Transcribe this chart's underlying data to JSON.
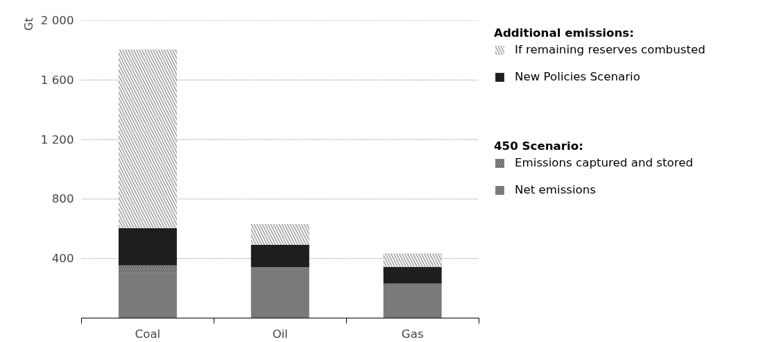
{
  "chart_data": {
    "type": "bar",
    "stacked": true,
    "categories": [
      "Coal",
      "Oil",
      "Gas"
    ],
    "ylabel": "Gt",
    "ylim": [
      0,
      2000
    ],
    "yticks": [
      {
        "value": 0,
        "label": null
      },
      {
        "value": 400,
        "label": "400"
      },
      {
        "value": 800,
        "label": "800"
      },
      {
        "value": 1200,
        "label": "1 200"
      },
      {
        "value": 1600,
        "label": "1 600"
      },
      {
        "value": 2000,
        "label": "2 000"
      }
    ],
    "grid": "y",
    "legend": "right",
    "legend_title": "Additional emissions:",
    "annotations": [
      "450 Scenario:"
    ],
    "series": [
      {
        "name": "Net emissions",
        "color": "#7a7a7a",
        "values": [
          304,
          342,
          232
        ]
      },
      {
        "name": "Emissions captured and stored",
        "color": "#4a4a4a",
        "values": [
          50,
          0,
          0
        ]
      },
      {
        "name": "New Policies Scenario",
        "color": "#1e1e1e",
        "values": [
          250,
          150,
          112
        ]
      },
      {
        "name": "If remaining reserves combusted",
        "color": "#a0a0a0",
        "values": [
          1200,
          140,
          90
        ]
      }
    ]
  }
}
